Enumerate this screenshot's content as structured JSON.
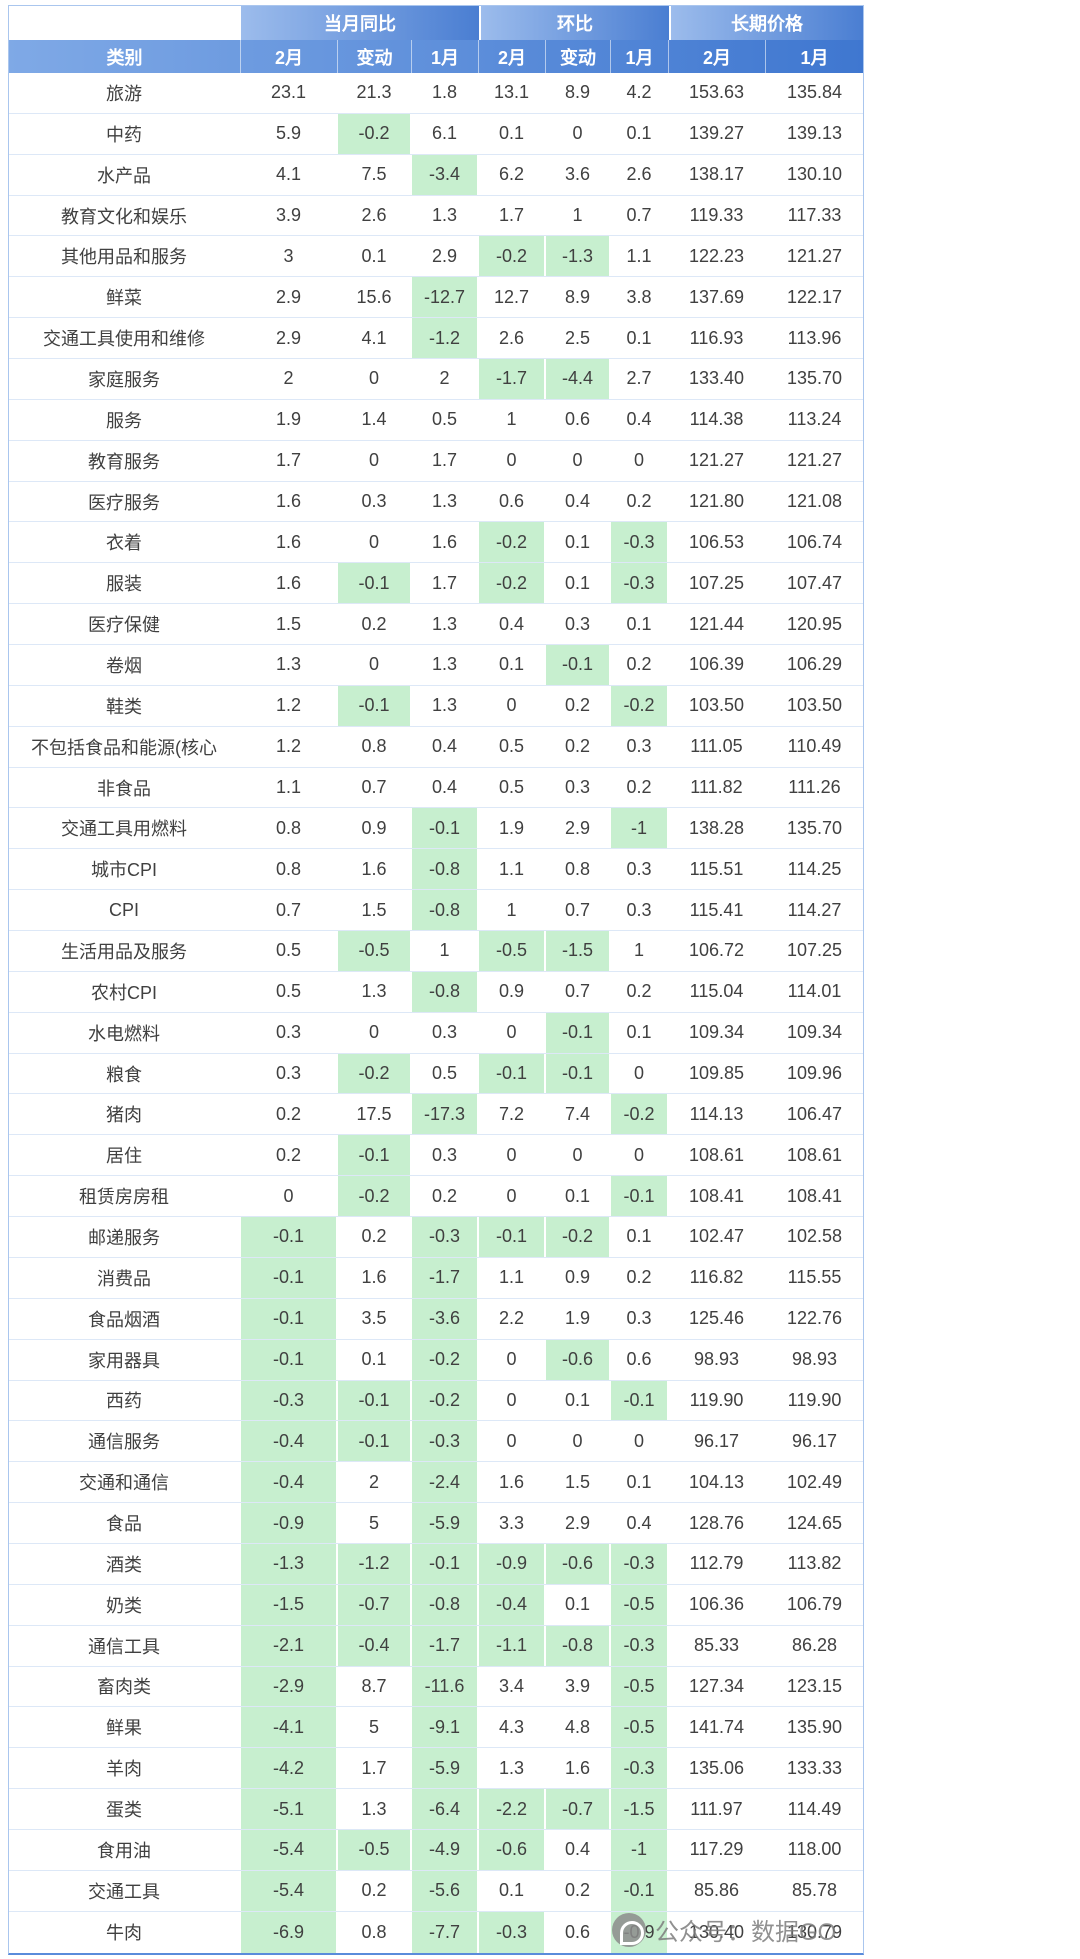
{
  "chart_data": {
    "type": "table",
    "title": "",
    "column_groups": [
      {
        "label": "当月同比",
        "span": 3
      },
      {
        "label": "环比",
        "span": 3
      },
      {
        "label": "长期价格",
        "span": 2
      }
    ],
    "columns": [
      "类别",
      "2月",
      "变动",
      "1月",
      "2月",
      "变动",
      "1月",
      "2月",
      "1月"
    ],
    "negative_highlight": true,
    "rows": [
      {
        "category": "旅游",
        "values": [
          "23.1",
          "21.3",
          "1.8",
          "13.1",
          "8.9",
          "4.2",
          "153.63",
          "135.84"
        ]
      },
      {
        "category": "中药",
        "values": [
          "5.9",
          "-0.2",
          "6.1",
          "0.1",
          "0",
          "0.1",
          "139.27",
          "139.13"
        ]
      },
      {
        "category": "水产品",
        "values": [
          "4.1",
          "7.5",
          "-3.4",
          "6.2",
          "3.6",
          "2.6",
          "138.17",
          "130.10"
        ]
      },
      {
        "category": "教育文化和娱乐",
        "values": [
          "3.9",
          "2.6",
          "1.3",
          "1.7",
          "1",
          "0.7",
          "119.33",
          "117.33"
        ]
      },
      {
        "category": "其他用品和服务",
        "values": [
          "3",
          "0.1",
          "2.9",
          "-0.2",
          "-1.3",
          "1.1",
          "122.23",
          "121.27"
        ]
      },
      {
        "category": "鲜菜",
        "values": [
          "2.9",
          "15.6",
          "-12.7",
          "12.7",
          "8.9",
          "3.8",
          "137.69",
          "122.17"
        ]
      },
      {
        "category": "交通工具使用和维修",
        "values": [
          "2.9",
          "4.1",
          "-1.2",
          "2.6",
          "2.5",
          "0.1",
          "116.93",
          "113.96"
        ]
      },
      {
        "category": "家庭服务",
        "values": [
          "2",
          "0",
          "2",
          "-1.7",
          "-4.4",
          "2.7",
          "133.40",
          "135.70"
        ]
      },
      {
        "category": "服务",
        "values": [
          "1.9",
          "1.4",
          "0.5",
          "1",
          "0.6",
          "0.4",
          "114.38",
          "113.24"
        ]
      },
      {
        "category": "教育服务",
        "values": [
          "1.7",
          "0",
          "1.7",
          "0",
          "0",
          "0",
          "121.27",
          "121.27"
        ]
      },
      {
        "category": "医疗服务",
        "values": [
          "1.6",
          "0.3",
          "1.3",
          "0.6",
          "0.4",
          "0.2",
          "121.80",
          "121.08"
        ]
      },
      {
        "category": "衣着",
        "values": [
          "1.6",
          "0",
          "1.6",
          "-0.2",
          "0.1",
          "-0.3",
          "106.53",
          "106.74"
        ]
      },
      {
        "category": "服装",
        "values": [
          "1.6",
          "-0.1",
          "1.7",
          "-0.2",
          "0.1",
          "-0.3",
          "107.25",
          "107.47"
        ]
      },
      {
        "category": "医疗保健",
        "values": [
          "1.5",
          "0.2",
          "1.3",
          "0.4",
          "0.3",
          "0.1",
          "121.44",
          "120.95"
        ]
      },
      {
        "category": "卷烟",
        "values": [
          "1.3",
          "0",
          "1.3",
          "0.1",
          "-0.1",
          "0.2",
          "106.39",
          "106.29"
        ]
      },
      {
        "category": "鞋类",
        "values": [
          "1.2",
          "-0.1",
          "1.3",
          "0",
          "0.2",
          "-0.2",
          "103.50",
          "103.50"
        ]
      },
      {
        "category": "不包括食品和能源(核心",
        "values": [
          "1.2",
          "0.8",
          "0.4",
          "0.5",
          "0.2",
          "0.3",
          "111.05",
          "110.49"
        ]
      },
      {
        "category": "非食品",
        "values": [
          "1.1",
          "0.7",
          "0.4",
          "0.5",
          "0.3",
          "0.2",
          "111.82",
          "111.26"
        ]
      },
      {
        "category": "交通工具用燃料",
        "values": [
          "0.8",
          "0.9",
          "-0.1",
          "1.9",
          "2.9",
          "-1",
          "138.28",
          "135.70"
        ]
      },
      {
        "category": "城市CPI",
        "values": [
          "0.8",
          "1.6",
          "-0.8",
          "1.1",
          "0.8",
          "0.3",
          "115.51",
          "114.25"
        ]
      },
      {
        "category": "CPI",
        "values": [
          "0.7",
          "1.5",
          "-0.8",
          "1",
          "0.7",
          "0.3",
          "115.41",
          "114.27"
        ]
      },
      {
        "category": "生活用品及服务",
        "values": [
          "0.5",
          "-0.5",
          "1",
          "-0.5",
          "-1.5",
          "1",
          "106.72",
          "107.25"
        ]
      },
      {
        "category": "农村CPI",
        "values": [
          "0.5",
          "1.3",
          "-0.8",
          "0.9",
          "0.7",
          "0.2",
          "115.04",
          "114.01"
        ]
      },
      {
        "category": "水电燃料",
        "values": [
          "0.3",
          "0",
          "0.3",
          "0",
          "-0.1",
          "0.1",
          "109.34",
          "109.34"
        ]
      },
      {
        "category": "粮食",
        "values": [
          "0.3",
          "-0.2",
          "0.5",
          "-0.1",
          "-0.1",
          "0",
          "109.85",
          "109.96"
        ]
      },
      {
        "category": "猪肉",
        "values": [
          "0.2",
          "17.5",
          "-17.3",
          "7.2",
          "7.4",
          "-0.2",
          "114.13",
          "106.47"
        ]
      },
      {
        "category": "居住",
        "values": [
          "0.2",
          "-0.1",
          "0.3",
          "0",
          "0",
          "0",
          "108.61",
          "108.61"
        ]
      },
      {
        "category": "租赁房房租",
        "values": [
          "0",
          "-0.2",
          "0.2",
          "0",
          "0.1",
          "-0.1",
          "108.41",
          "108.41"
        ]
      },
      {
        "category": "邮递服务",
        "values": [
          "-0.1",
          "0.2",
          "-0.3",
          "-0.1",
          "-0.2",
          "0.1",
          "102.47",
          "102.58"
        ]
      },
      {
        "category": "消费品",
        "values": [
          "-0.1",
          "1.6",
          "-1.7",
          "1.1",
          "0.9",
          "0.2",
          "116.82",
          "115.55"
        ]
      },
      {
        "category": "食品烟酒",
        "values": [
          "-0.1",
          "3.5",
          "-3.6",
          "2.2",
          "1.9",
          "0.3",
          "125.46",
          "122.76"
        ]
      },
      {
        "category": "家用器具",
        "values": [
          "-0.1",
          "0.1",
          "-0.2",
          "0",
          "-0.6",
          "0.6",
          "98.93",
          "98.93"
        ]
      },
      {
        "category": "西药",
        "values": [
          "-0.3",
          "-0.1",
          "-0.2",
          "0",
          "0.1",
          "-0.1",
          "119.90",
          "119.90"
        ]
      },
      {
        "category": "通信服务",
        "values": [
          "-0.4",
          "-0.1",
          "-0.3",
          "0",
          "0",
          "0",
          "96.17",
          "96.17"
        ]
      },
      {
        "category": "交通和通信",
        "values": [
          "-0.4",
          "2",
          "-2.4",
          "1.6",
          "1.5",
          "0.1",
          "104.13",
          "102.49"
        ]
      },
      {
        "category": "食品",
        "values": [
          "-0.9",
          "5",
          "-5.9",
          "3.3",
          "2.9",
          "0.4",
          "128.76",
          "124.65"
        ]
      },
      {
        "category": "酒类",
        "values": [
          "-1.3",
          "-1.2",
          "-0.1",
          "-0.9",
          "-0.6",
          "-0.3",
          "112.79",
          "113.82"
        ]
      },
      {
        "category": "奶类",
        "values": [
          "-1.5",
          "-0.7",
          "-0.8",
          "-0.4",
          "0.1",
          "-0.5",
          "106.36",
          "106.79"
        ]
      },
      {
        "category": "通信工具",
        "values": [
          "-2.1",
          "-0.4",
          "-1.7",
          "-1.1",
          "-0.8",
          "-0.3",
          "85.33",
          "86.28"
        ]
      },
      {
        "category": "畜肉类",
        "values": [
          "-2.9",
          "8.7",
          "-11.6",
          "3.4",
          "3.9",
          "-0.5",
          "127.34",
          "123.15"
        ]
      },
      {
        "category": "鲜果",
        "values": [
          "-4.1",
          "5",
          "-9.1",
          "4.3",
          "4.8",
          "-0.5",
          "141.74",
          "135.90"
        ]
      },
      {
        "category": "羊肉",
        "values": [
          "-4.2",
          "1.7",
          "-5.9",
          "1.3",
          "1.6",
          "-0.3",
          "135.06",
          "133.33"
        ]
      },
      {
        "category": "蛋类",
        "values": [
          "-5.1",
          "1.3",
          "-6.4",
          "-2.2",
          "-0.7",
          "-1.5",
          "111.97",
          "114.49"
        ]
      },
      {
        "category": "食用油",
        "values": [
          "-5.4",
          "-0.5",
          "-4.9",
          "-0.6",
          "0.4",
          "-1",
          "117.29",
          "118.00"
        ]
      },
      {
        "category": "交通工具",
        "values": [
          "-5.4",
          "0.2",
          "-5.6",
          "0.1",
          "0.2",
          "-0.1",
          "85.86",
          "85.78"
        ]
      },
      {
        "category": "牛肉",
        "values": [
          "-6.9",
          "0.8",
          "-7.7",
          "-0.3",
          "0.6",
          "-0.9",
          "130.40",
          "130.79"
        ]
      }
    ]
  },
  "watermark": {
    "icon": "circle-logo",
    "text": "公众号：数据GO"
  },
  "colors": {
    "header_gradient_start": "#9CBCEC",
    "header_gradient_end": "#4A7ED2",
    "negative_fill": "#C7EFCF",
    "header_text": "#FFFFFF",
    "body_text": "#404040",
    "row_border": "#DDE8F7"
  }
}
